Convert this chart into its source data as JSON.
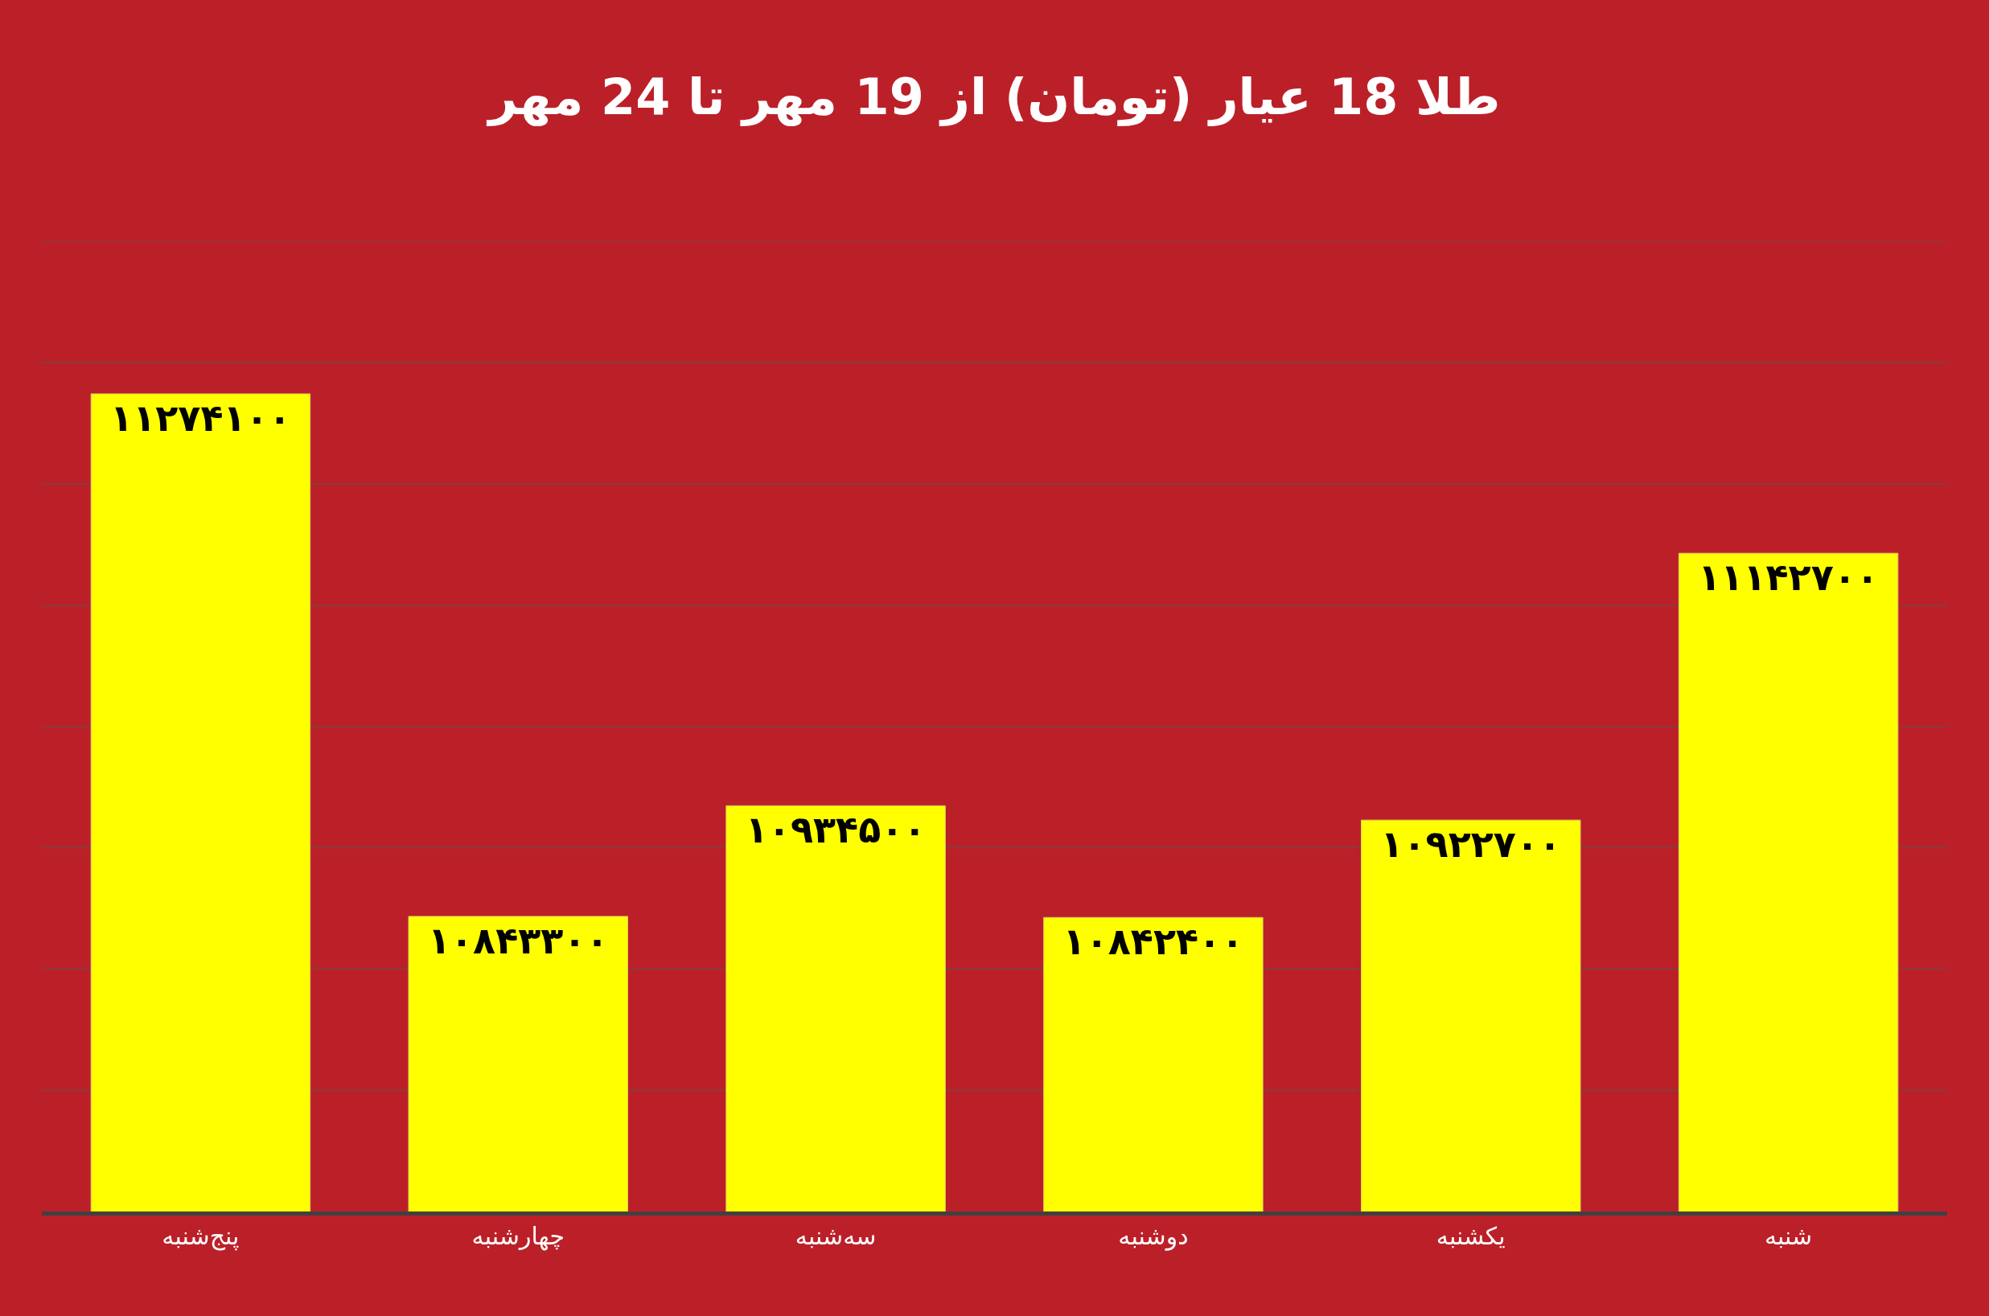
{
  "chart_data": {
    "type": "bar",
    "title": "طلا 18 عیار (تومان) از 19 مهر تا 24 مهر",
    "categories": [
      "پنج‌شنبه",
      "چهارشنبه",
      "سه‌شنبه",
      "دوشنبه",
      "یکشنبه",
      "شنبه"
    ],
    "values": [
      11274100,
      10843300,
      10934500,
      10842400,
      10922700,
      11142700
    ],
    "value_labels": [
      "۱۱۲۷۴۱۰۰",
      "۱۰۸۴۳۳۰۰",
      "۱۰۹۳۴۵۰۰",
      "۱۰۸۴۲۴۰۰",
      "۱۰۹۲۲۷۰۰",
      "۱۱۱۴۲۷۰۰"
    ],
    "color": "#ffff00",
    "ylim": [
      10600000,
      11400000
    ],
    "yticks": [
      {
        "value": 10600000,
        "label": null
      },
      {
        "value": 10700000,
        "label": null
      },
      {
        "value": 10800000,
        "label": null
      },
      {
        "value": 10900000,
        "label": null
      },
      {
        "value": 11000000,
        "label": null
      },
      {
        "value": 11100000,
        "label": null
      },
      {
        "value": 11200000,
        "label": null
      },
      {
        "value": 11300000,
        "label": null
      },
      {
        "value": 11400000,
        "label": null
      }
    ],
    "grid": "y",
    "tick_labels": "x",
    "legend": false
  }
}
